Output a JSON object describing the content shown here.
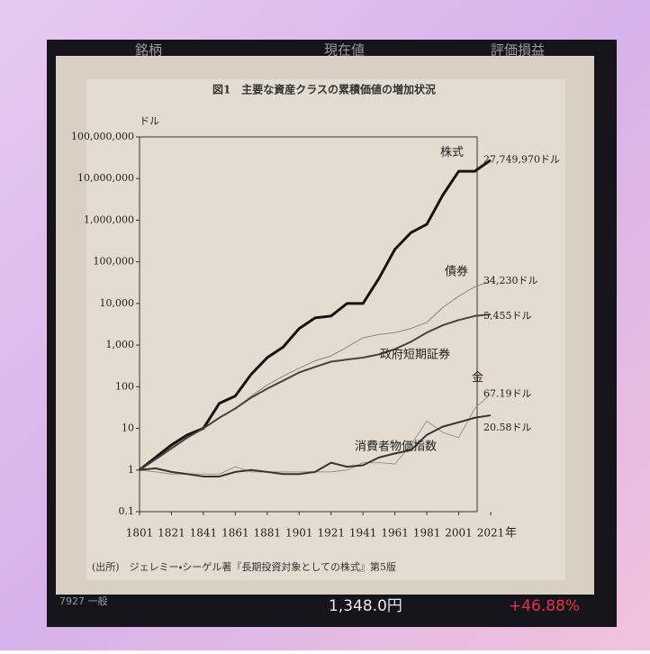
{
  "app": {
    "header_columns": [
      "銘柄",
      "現在値",
      "評価損益"
    ],
    "row": {
      "code": "7927 一般",
      "price": "1,348.0円",
      "change": "+46.88%"
    }
  },
  "chart_data": {
    "type": "line",
    "title": "図1　主要な資産クラスの累積価値の増加状況",
    "ylabel": "ドル",
    "xlabel": "年",
    "source": "(出所)　ジェレミー・シーゲル著『長期投資対象としての株式』第5版",
    "log_scale_y": true,
    "x": [
      1801,
      1811,
      1821,
      1831,
      1841,
      1851,
      1861,
      1871,
      1881,
      1891,
      1901,
      1911,
      1921,
      1931,
      1941,
      1951,
      1961,
      1971,
      1981,
      1991,
      2001,
      2011,
      2021
    ],
    "series": [
      {
        "name": "株式",
        "color": "#161412",
        "end_label": "27,749,970ドル",
        "values": [
          1,
          2,
          4,
          7,
          10,
          40,
          60,
          200,
          500,
          900,
          2500,
          4500,
          5000,
          10000,
          10000,
          40000,
          200000,
          500000,
          800000,
          4000000,
          15000000,
          15000000,
          27749970
        ]
      },
      {
        "name": "債券",
        "color": "#8a8580",
        "end_label": "34,230ドル",
        "values": [
          1,
          1.8,
          3.5,
          6,
          10,
          18,
          30,
          60,
          110,
          180,
          280,
          420,
          550,
          900,
          1500,
          1800,
          2000,
          2500,
          3500,
          8000,
          15000,
          25000,
          34230
        ]
      },
      {
        "name": "政府短期証券",
        "color": "#4a4440",
        "end_label": "5,455ドル",
        "values": [
          1,
          1.8,
          3.3,
          6,
          10,
          18,
          30,
          55,
          90,
          140,
          220,
          300,
          400,
          450,
          500,
          600,
          800,
          1200,
          2000,
          3000,
          4000,
          5000,
          5455
        ]
      },
      {
        "name": "金",
        "color": "#9a948e",
        "end_label": "67.19ドル",
        "values": [
          1,
          0.9,
          0.8,
          0.8,
          0.8,
          0.8,
          1.2,
          0.9,
          0.9,
          0.9,
          0.9,
          0.9,
          0.9,
          1,
          1.5,
          1.5,
          1.4,
          4,
          15,
          8,
          6,
          30,
          67.19
        ]
      },
      {
        "name": "消費者物価指数",
        "color": "#3a3431",
        "end_label": "20.58ドル",
        "values": [
          1,
          1.1,
          0.9,
          0.8,
          0.7,
          0.7,
          0.9,
          1,
          0.9,
          0.8,
          0.8,
          0.9,
          1.5,
          1.2,
          1.3,
          2,
          2.5,
          3,
          7,
          11,
          14,
          18,
          20.58
        ]
      }
    ],
    "xlim": [
      1801,
      2021
    ],
    "xticks": [
      1801,
      1821,
      1841,
      1861,
      1881,
      1901,
      1921,
      1941,
      1961,
      1981,
      2001,
      2021
    ],
    "ylim": [
      0.1,
      100000000
    ],
    "yticks": [
      0.1,
      1,
      10,
      100,
      {
        "value": 1000,
        "label": "1,000"
      },
      {
        "value": 10000,
        "label": "10,000"
      },
      {
        "value": 100000,
        "label": "100,000"
      },
      {
        "value": 1000000,
        "label": "1,000,000"
      },
      {
        "value": 10000000,
        "label": "10,000,000"
      },
      {
        "value": 100000000,
        "label": "100,000,000"
      }
    ]
  }
}
